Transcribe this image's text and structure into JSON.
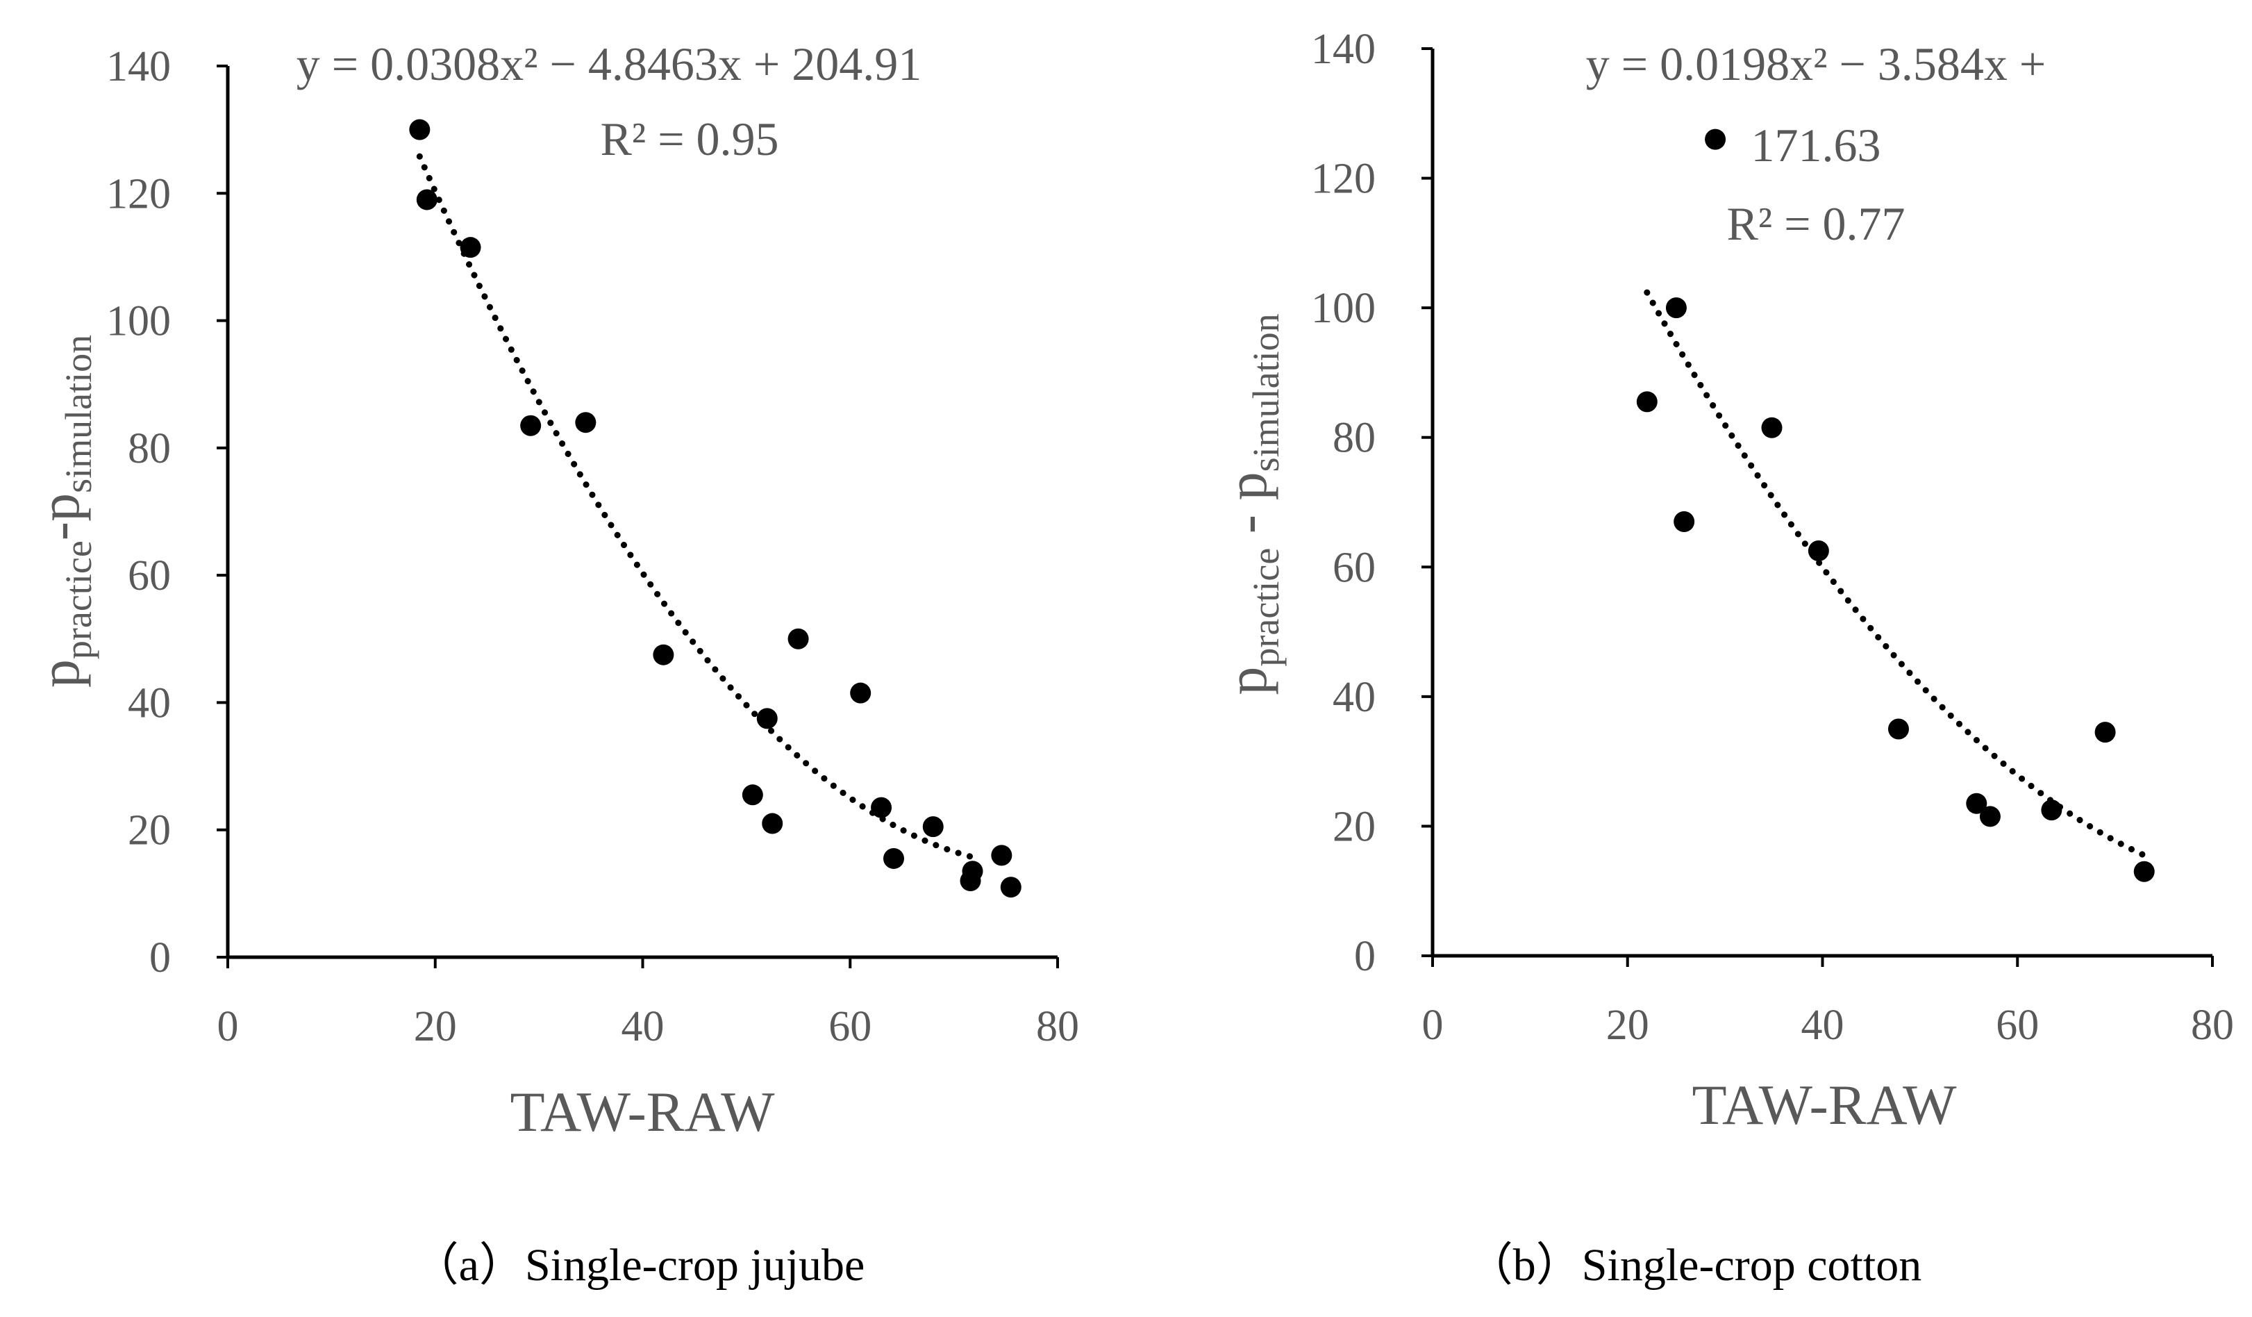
{
  "colors": {
    "axis": "#000000",
    "text": "#595959",
    "marker": "#000000",
    "trend": "#000000"
  },
  "chart_data": [
    {
      "type": "scatter",
      "panel_label": "（a）",
      "caption": "Single-crop jujube",
      "xlabel": "TAW-RAW",
      "ylabel_main": "p",
      "ylabel_sub1": "practice",
      "ylabel_sep": "-",
      "ylabel_sub2": "simulation",
      "xlim": [
        0,
        80
      ],
      "ylim": [
        0,
        140
      ],
      "xticks": [
        0,
        20,
        40,
        60,
        80
      ],
      "yticks": [
        0,
        20,
        40,
        60,
        80,
        100,
        120,
        140
      ],
      "xtick_labels": [
        "0",
        "20",
        "40",
        "60",
        "80"
      ],
      "ytick_labels": [
        "0",
        "20",
        "40",
        "60",
        "80",
        "100",
        "120",
        "140"
      ],
      "points": [
        {
          "x": 18.5,
          "y": 130
        },
        {
          "x": 19.2,
          "y": 119
        },
        {
          "x": 23.4,
          "y": 111.5
        },
        {
          "x": 29.2,
          "y": 83.5
        },
        {
          "x": 34.5,
          "y": 84
        },
        {
          "x": 42,
          "y": 47.5
        },
        {
          "x": 50.6,
          "y": 25.5
        },
        {
          "x": 52,
          "y": 37.5
        },
        {
          "x": 52.5,
          "y": 21
        },
        {
          "x": 55,
          "y": 50
        },
        {
          "x": 61,
          "y": 41.5
        },
        {
          "x": 63,
          "y": 23.5
        },
        {
          "x": 64.2,
          "y": 15.5
        },
        {
          "x": 68,
          "y": 20.5
        },
        {
          "x": 71.6,
          "y": 12
        },
        {
          "x": 71.8,
          "y": 13.5
        },
        {
          "x": 74.6,
          "y": 16
        },
        {
          "x": 75.5,
          "y": 11
        }
      ],
      "trend": {
        "type": "polynomial",
        "degree": 2,
        "coef": [
          204.91,
          -4.8463,
          0.0308
        ],
        "x_range": [
          18.5,
          72
        ]
      },
      "equation_text": "y = 0.0308x² − 4.8463x + 204.91",
      "r2_text": "R² = 0.95"
    },
    {
      "type": "scatter",
      "panel_label": "（b）",
      "caption": "Single-crop cotton",
      "xlabel": "TAW-RAW",
      "ylabel_main": "p",
      "ylabel_sub1": "practice",
      "ylabel_sep": " - ",
      "ylabel_sub2": "simulation",
      "xlim": [
        0,
        80
      ],
      "ylim": [
        0,
        140
      ],
      "xticks": [
        0,
        20,
        40,
        60,
        80
      ],
      "yticks": [
        0,
        20,
        40,
        60,
        80,
        100,
        120,
        140
      ],
      "xtick_labels": [
        "0",
        "20",
        "40",
        "60",
        "80"
      ],
      "ytick_labels": [
        "0",
        "20",
        "40",
        "60",
        "80",
        "100",
        "120",
        "140"
      ],
      "points": [
        {
          "x": 22,
          "y": 85.5
        },
        {
          "x": 25,
          "y": 100
        },
        {
          "x": 25.8,
          "y": 67
        },
        {
          "x": 29,
          "y": 126
        },
        {
          "x": 34.8,
          "y": 81.5
        },
        {
          "x": 39.6,
          "y": 62.5
        },
        {
          "x": 47.8,
          "y": 35
        },
        {
          "x": 55.8,
          "y": 23.5
        },
        {
          "x": 57.2,
          "y": 21.5
        },
        {
          "x": 63.5,
          "y": 22.5
        },
        {
          "x": 69,
          "y": 34.5
        },
        {
          "x": 73,
          "y": 13
        }
      ],
      "trend": {
        "type": "polynomial",
        "degree": 2,
        "coef": [
          171.63,
          -3.584,
          0.0198
        ],
        "x_range": [
          22,
          73
        ]
      },
      "equation_line1": "y = 0.0198x² − 3.584x +",
      "equation_line2": "171.63",
      "r2_text": "R² = 0.77"
    }
  ]
}
